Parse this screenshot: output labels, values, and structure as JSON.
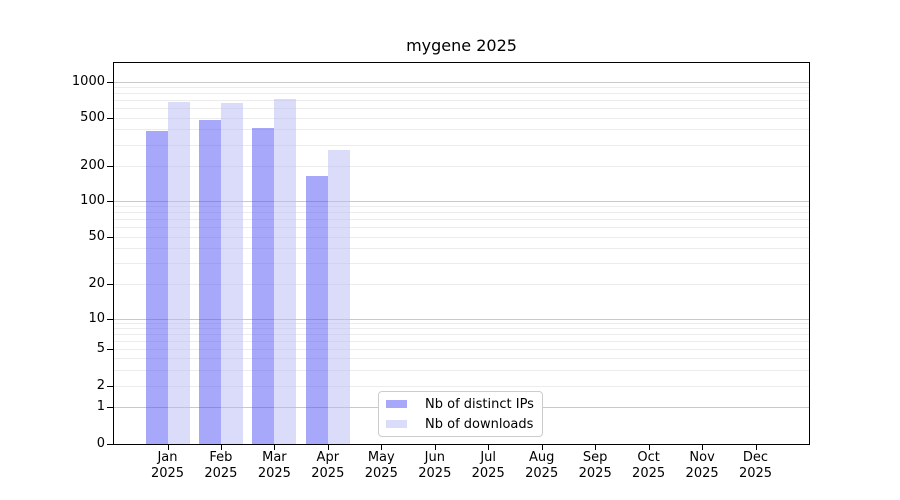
{
  "figure": {
    "background": "#ffffff"
  },
  "chart_data": {
    "type": "bar",
    "title": "mygene 2025",
    "categories": [
      "Jan",
      "Feb",
      "Mar",
      "Apr",
      "May",
      "Jun",
      "Jul",
      "Aug",
      "Sep",
      "Oct",
      "Nov",
      "Dec"
    ],
    "categories_year": "2025",
    "series": [
      {
        "name": "Nb of distinct IPs",
        "color": "rgba(81,81,245,0.5)",
        "color_on_white": "#a8a8fa",
        "values": [
          385,
          475,
          415,
          163,
          null,
          null,
          null,
          null,
          null,
          null,
          null,
          null
        ]
      },
      {
        "name": "Nb of downloads",
        "color": "rgba(183,183,245,0.5)",
        "color_on_white": "#dbdbfa",
        "values": [
          680,
          665,
          720,
          268,
          null,
          null,
          null,
          null,
          null,
          null,
          null,
          null
        ]
      }
    ],
    "xlabel": "",
    "ylabel": "",
    "yscale": "symlog",
    "ylim": [
      0,
      1450
    ],
    "yticks": [
      0,
      1,
      2,
      5,
      10,
      20,
      50,
      100,
      200,
      500,
      1000
    ],
    "ytick_pos": [
      0,
      0.0984,
      0.1522,
      0.2499,
      0.329,
      0.4207,
      0.5444,
      0.6389,
      0.7303,
      0.8564,
      0.9504
    ],
    "grid": {
      "enabled": true,
      "major": [
        1,
        10,
        100,
        1000
      ],
      "minor": [
        2,
        3,
        4,
        5,
        6,
        7,
        8,
        9,
        20,
        30,
        40,
        50,
        60,
        70,
        80,
        90,
        200,
        300,
        400,
        500,
        600,
        700,
        800,
        900
      ],
      "major_color": "#c9c9c9",
      "minor_color": "#ececec"
    },
    "legend_position": "lower center"
  }
}
